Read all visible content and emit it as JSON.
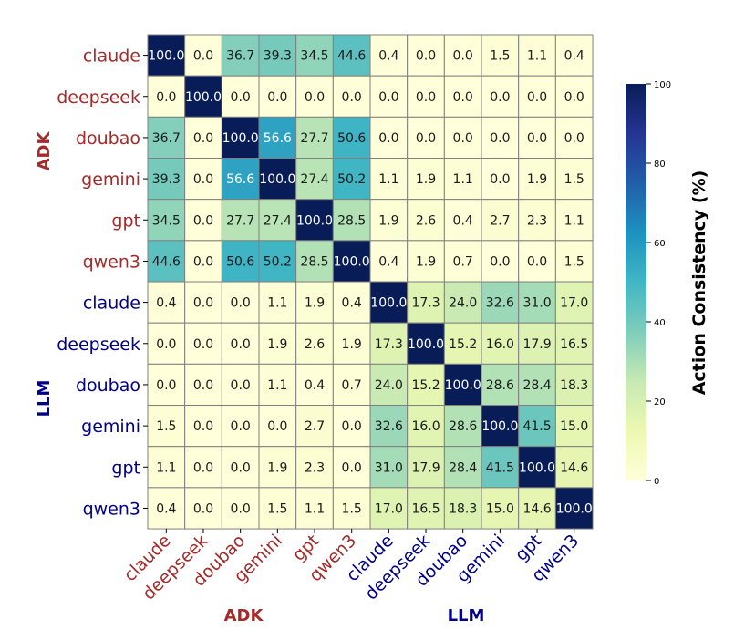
{
  "chart_data": {
    "type": "heatmap",
    "title": "",
    "groups": [
      {
        "name": "ADK",
        "color": "#a52a2a",
        "models": [
          "claude",
          "deepseek",
          "doubao",
          "gemini",
          "gpt",
          "qwen3"
        ]
      },
      {
        "name": "LLM",
        "color": "#00008b",
        "models": [
          "claude",
          "deepseek",
          "doubao",
          "gemini",
          "gpt",
          "qwen3"
        ]
      }
    ],
    "labels": [
      "claude",
      "deepseek",
      "doubao",
      "gemini",
      "gpt",
      "qwen3",
      "claude",
      "deepseek",
      "doubao",
      "gemini",
      "gpt",
      "qwen3"
    ],
    "values": [
      [
        100.0,
        0.0,
        36.7,
        39.3,
        34.5,
        44.6,
        0.4,
        0.0,
        0.0,
        1.5,
        1.1,
        0.4
      ],
      [
        0.0,
        100.0,
        0.0,
        0.0,
        0.0,
        0.0,
        0.0,
        0.0,
        0.0,
        0.0,
        0.0,
        0.0
      ],
      [
        36.7,
        0.0,
        100.0,
        56.6,
        27.7,
        50.6,
        0.0,
        0.0,
        0.0,
        0.0,
        0.0,
        0.0
      ],
      [
        39.3,
        0.0,
        56.6,
        100.0,
        27.4,
        50.2,
        1.1,
        1.9,
        1.1,
        0.0,
        1.9,
        1.5
      ],
      [
        34.5,
        0.0,
        27.7,
        27.4,
        100.0,
        28.5,
        1.9,
        2.6,
        0.4,
        2.7,
        2.3,
        1.1
      ],
      [
        44.6,
        0.0,
        50.6,
        50.2,
        28.5,
        100.0,
        0.4,
        1.9,
        0.7,
        0.0,
        0.0,
        1.5
      ],
      [
        0.4,
        0.0,
        0.0,
        1.1,
        1.9,
        0.4,
        100.0,
        17.3,
        24.0,
        32.6,
        31.0,
        17.0
      ],
      [
        0.0,
        0.0,
        0.0,
        1.9,
        2.6,
        1.9,
        17.3,
        100.0,
        15.2,
        16.0,
        17.9,
        16.5
      ],
      [
        0.0,
        0.0,
        0.0,
        1.1,
        0.4,
        0.7,
        24.0,
        15.2,
        100.0,
        28.6,
        28.4,
        18.3
      ],
      [
        1.5,
        0.0,
        0.0,
        0.0,
        2.7,
        0.0,
        32.6,
        16.0,
        28.6,
        100.0,
        41.5,
        15.0
      ],
      [
        1.1,
        0.0,
        0.0,
        1.9,
        2.3,
        0.0,
        31.0,
        17.9,
        28.4,
        41.5,
        100.0,
        14.6
      ],
      [
        0.4,
        0.0,
        0.0,
        1.5,
        1.1,
        1.5,
        17.0,
        16.5,
        18.3,
        15.0,
        14.6,
        100.0
      ]
    ],
    "colorbar": {
      "label": "Action Consistency (%)",
      "range": [
        0,
        100
      ],
      "ticks": [
        0,
        20,
        40,
        60,
        80,
        100
      ],
      "colormap": "YlGnBu"
    }
  },
  "colors": {
    "adk": "#a52a2a",
    "llm": "#00008b",
    "cell_border": "#808080"
  }
}
